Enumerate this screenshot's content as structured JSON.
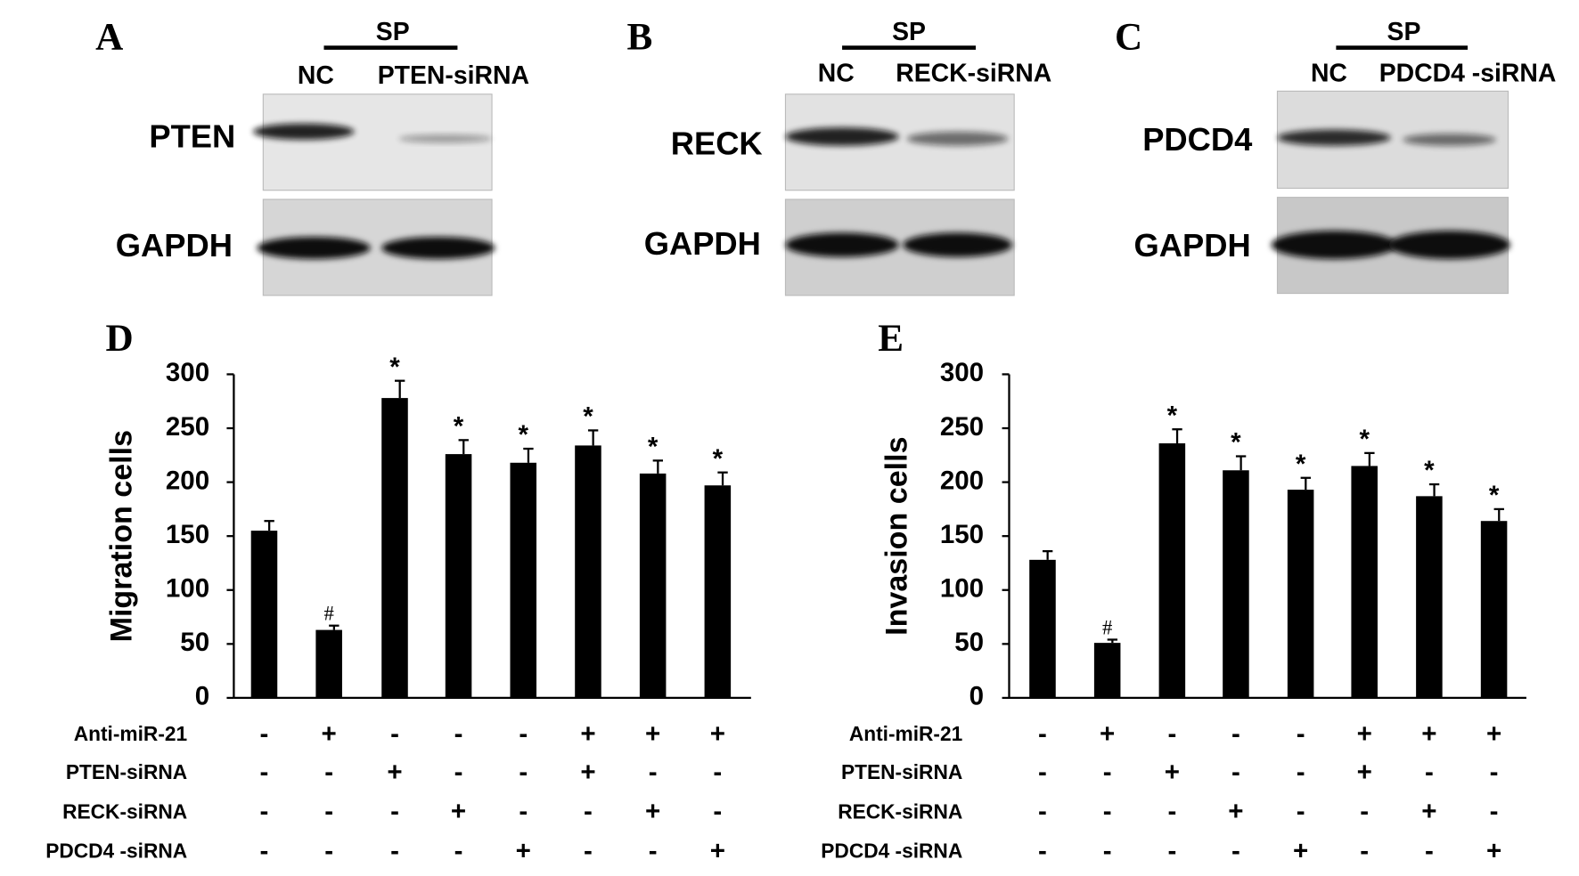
{
  "blots": [
    {
      "panel": "A",
      "group": "SP",
      "lanes": [
        "NC",
        "PTEN-siRNA"
      ],
      "rows": [
        "PTEN",
        "GAPDH"
      ]
    },
    {
      "panel": "B",
      "group": "SP",
      "lanes": [
        "NC",
        "RECK-siRNA"
      ],
      "rows": [
        "RECK",
        "GAPDH"
      ]
    },
    {
      "panel": "C",
      "group": "SP",
      "lanes": [
        "NC",
        "PDCD4 -siRNA"
      ],
      "rows": [
        "PDCD4",
        "GAPDH"
      ]
    }
  ],
  "chart_data": [
    {
      "type": "bar",
      "panel": "D",
      "y_label": "Migration cells",
      "color": "#000000",
      "categories": [
        null,
        null,
        null,
        null,
        null,
        null,
        null,
        null
      ],
      "values": [
        155,
        63,
        278,
        226,
        218,
        234,
        208,
        197
      ],
      "errors": [
        9,
        4,
        16,
        13,
        13,
        14,
        12,
        12
      ],
      "annotations": [
        null,
        "#",
        "*",
        "*",
        "*",
        "*",
        "*",
        "*"
      ],
      "ylim": [
        0,
        300
      ],
      "yticks": [
        0,
        50,
        100,
        150,
        200,
        250,
        300
      ],
      "conditions": [
        {
          "name": "Anti-miR-21",
          "signs": [
            "-",
            "+",
            "-",
            "-",
            "-",
            "+",
            "+",
            "+"
          ]
        },
        {
          "name": "PTEN-siRNA",
          "signs": [
            "-",
            "-",
            "+",
            "-",
            "-",
            "+",
            "-",
            "-"
          ]
        },
        {
          "name": "RECK-siRNA",
          "signs": [
            "-",
            "-",
            "-",
            "+",
            "-",
            "-",
            "+",
            "-"
          ]
        },
        {
          "name": "PDCD4 -siRNA",
          "signs": [
            "-",
            "-",
            "-",
            "-",
            "+",
            "-",
            "-",
            "+"
          ]
        }
      ]
    },
    {
      "type": "bar",
      "panel": "E",
      "y_label": "Invasion cells",
      "color": "#000000",
      "categories": [
        null,
        null,
        null,
        null,
        null,
        null,
        null,
        null
      ],
      "values": [
        128,
        51,
        236,
        211,
        193,
        215,
        187,
        164
      ],
      "errors": [
        8,
        3,
        13,
        13,
        11,
        12,
        11,
        11
      ],
      "annotations": [
        null,
        "#",
        "*",
        "*",
        "*",
        "*",
        "*",
        "*"
      ],
      "ylim": [
        0,
        300
      ],
      "yticks": [
        0,
        50,
        100,
        150,
        200,
        250,
        300
      ],
      "conditions": [
        {
          "name": "Anti-miR-21",
          "signs": [
            "-",
            "+",
            "-",
            "-",
            "-",
            "+",
            "+",
            "+"
          ]
        },
        {
          "name": "PTEN-siRNA",
          "signs": [
            "-",
            "-",
            "+",
            "-",
            "-",
            "+",
            "-",
            "-"
          ]
        },
        {
          "name": "RECK-siRNA",
          "signs": [
            "-",
            "-",
            "-",
            "+",
            "-",
            "-",
            "+",
            "-"
          ]
        },
        {
          "name": "PDCD4 -siRNA",
          "signs": [
            "-",
            "-",
            "-",
            "-",
            "+",
            "-",
            "-",
            "+"
          ]
        }
      ]
    }
  ]
}
